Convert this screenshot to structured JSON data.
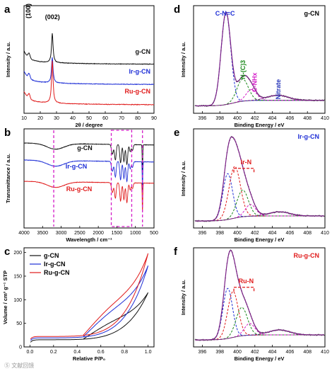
{
  "colors": {
    "g": "#111111",
    "ir": "#1f2fd6",
    "ru": "#e01b1b",
    "fit": "#7a1f86",
    "green": "#1e8a1e",
    "nitrate": "#2433b8",
    "magenta": "#d41cc8"
  },
  "watermark": "Ⓢ 文献回馈",
  "chart_data": [
    {
      "id": "a",
      "type": "line",
      "panel_label": "a",
      "xlabel": "2θ / degree",
      "ylabel": "Intensity / a.u.",
      "xlim": [
        10,
        90
      ],
      "xticks": [
        10,
        20,
        30,
        40,
        50,
        60,
        70,
        80,
        90
      ],
      "annotations": [
        "(100)",
        "(002)"
      ],
      "series": [
        {
          "name": "g-CN",
          "color": "#111111",
          "offset": 2.2
        },
        {
          "name": "Ir-g-CN",
          "color": "#1f2fd6",
          "offset": 1.1
        },
        {
          "name": "Ru-g-CN",
          "color": "#e01b1b",
          "offset": 0.0
        }
      ]
    },
    {
      "id": "b",
      "type": "line",
      "panel_label": "b",
      "xlabel": "Wavelength / cm⁻¹",
      "ylabel": "Transmittance / a.u.",
      "xlim": [
        4000,
        500
      ],
      "xticks": [
        4000,
        3500,
        3000,
        2500,
        2000,
        1500,
        1000,
        500
      ],
      "markers": [
        3200,
        810
      ],
      "highlight_range": [
        1650,
        1100
      ],
      "series": [
        {
          "name": "g-CN",
          "color": "#111111"
        },
        {
          "name": "Ir-g-CN",
          "color": "#1f2fd6"
        },
        {
          "name": "Ru-g-CN",
          "color": "#e01b1b"
        }
      ]
    },
    {
      "id": "c",
      "type": "line",
      "panel_label": "c",
      "xlabel": "Relative P/P₀",
      "ylabel": "Volume / cm³ g⁻¹ STP",
      "xlim": [
        -0.05,
        1.05
      ],
      "ylim": [
        0,
        210
      ],
      "xticks": [
        0.0,
        0.2,
        0.4,
        0.6,
        0.8,
        1.0
      ],
      "yticks": [
        0,
        50,
        100,
        150,
        200
      ],
      "series": [
        {
          "name": "g-CN",
          "color": "#111111",
          "max": 115,
          "base": 8
        },
        {
          "name": "Ir-g-CN",
          "color": "#1f2fd6",
          "max": 172,
          "base": 12
        },
        {
          "name": "Ru-g-CN",
          "color": "#e01b1b",
          "max": 198,
          "base": 15
        }
      ]
    },
    {
      "id": "d",
      "type": "line",
      "panel_label": "d",
      "sample": "g-CN",
      "xlabel": "Binding Energy / eV",
      "ylabel": "Intensity / a.u.",
      "xlim": [
        395,
        410
      ],
      "xticks": [
        396,
        398,
        400,
        402,
        404,
        406,
        408,
        410
      ],
      "peak_labels": [
        "C-N=C",
        "N-(C)3",
        "C-NHx",
        "Nitrate"
      ],
      "components": [
        {
          "center": 398.7,
          "height": 1.0,
          "width": 0.55,
          "color": "#1f2fd6"
        },
        {
          "center": 400.6,
          "height": 0.24,
          "width": 0.65,
          "color": "#1e8a1e"
        },
        {
          "center": 401.6,
          "height": 0.12,
          "width": 0.6,
          "color": "#d41cc8"
        },
        {
          "center": 404.6,
          "height": 0.055,
          "width": 1.2,
          "color": "#7a1f86"
        }
      ]
    },
    {
      "id": "e",
      "type": "line",
      "panel_label": "e",
      "sample": "Ir-g-CN",
      "xlabel": "Binding Energy / eV",
      "ylabel": "Intensity / a.u.",
      "xlim": [
        395,
        410
      ],
      "xticks": [
        396,
        398,
        400,
        402,
        404,
        406,
        408,
        410
      ],
      "bracket_label": "Ir-N",
      "components": [
        {
          "center": 398.9,
          "height": 0.55,
          "width": 0.55,
          "color": "#1f2fd6"
        },
        {
          "center": 399.7,
          "height": 0.62,
          "width": 0.65,
          "color": "#e01b1b"
        },
        {
          "center": 400.6,
          "height": 0.32,
          "width": 0.65,
          "color": "#1e8a1e"
        },
        {
          "center": 401.5,
          "height": 0.14,
          "width": 0.6,
          "color": "#d41cc8"
        },
        {
          "center": 404.8,
          "height": 0.05,
          "width": 1.2,
          "color": "#7a1f86"
        }
      ]
    },
    {
      "id": "f",
      "type": "line",
      "panel_label": "f",
      "sample": "Ru-g-CN",
      "xlabel": "Binding Energy / eV",
      "ylabel": "Intensity / a.u.",
      "xlim": [
        395,
        410
      ],
      "xticks": [
        396,
        398,
        400,
        402,
        404,
        406,
        408,
        410
      ],
      "bracket_label": "Ru-N",
      "components": [
        {
          "center": 398.9,
          "height": 0.6,
          "width": 0.55,
          "color": "#1f2fd6"
        },
        {
          "center": 399.5,
          "height": 0.55,
          "width": 0.6,
          "color": "#e01b1b"
        },
        {
          "center": 400.5,
          "height": 0.34,
          "width": 0.65,
          "color": "#1e8a1e"
        },
        {
          "center": 401.4,
          "height": 0.14,
          "width": 0.6,
          "color": "#d41cc8"
        },
        {
          "center": 404.8,
          "height": 0.06,
          "width": 1.2,
          "color": "#7a1f86"
        }
      ]
    }
  ]
}
